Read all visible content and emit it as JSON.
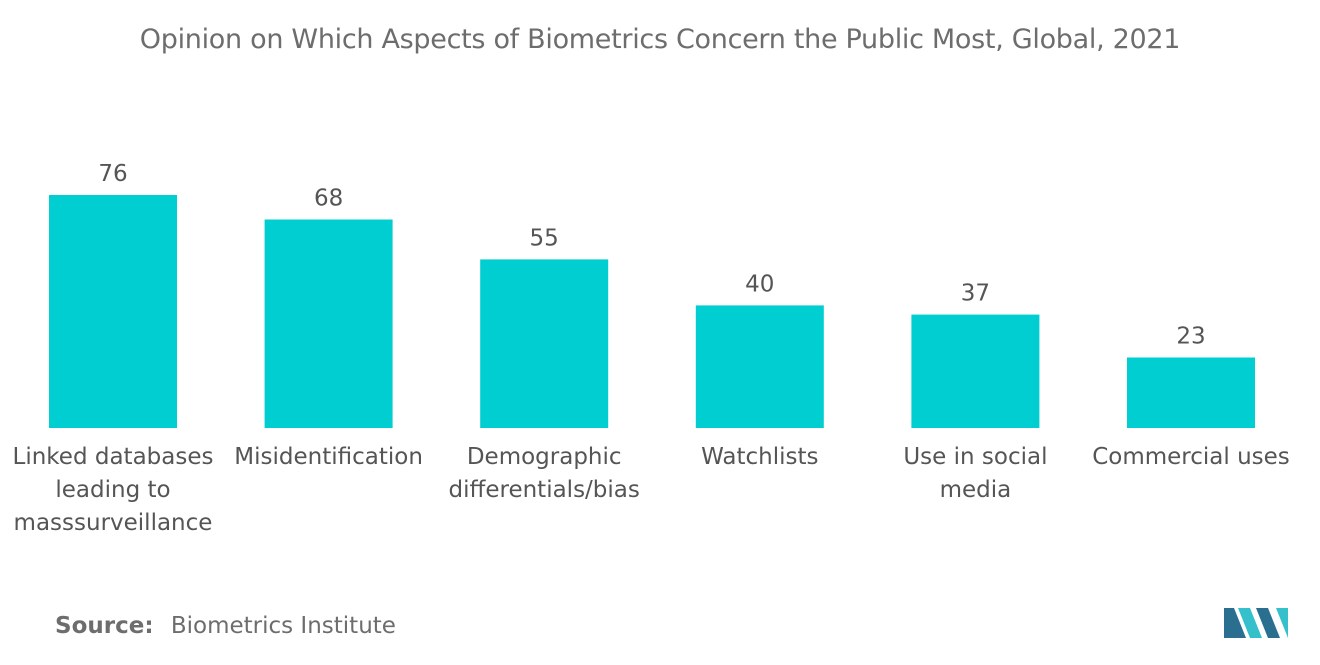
{
  "chart_data": {
    "type": "bar",
    "title": "Opinion on Which Aspects of Biometrics Concern the Public Most, Global, 2021",
    "categories": [
      [
        "Linked databases",
        "leading to",
        "masssurveillance"
      ],
      [
        "Misidentification"
      ],
      [
        "Demographic",
        "differentials/bias"
      ],
      [
        "Watchlists"
      ],
      [
        "Use in social",
        "media"
      ],
      [
        "Commercial uses"
      ]
    ],
    "values": [
      76,
      68,
      55,
      40,
      37,
      23
    ],
    "xlabel": "",
    "ylabel": "",
    "ylim": [
      0,
      76
    ],
    "grid": false,
    "legend": "none",
    "bar_color": "#00ced1",
    "label_color": "#555555"
  },
  "footer": {
    "source_label": "Source:",
    "source_value": "Biometrics Institute"
  },
  "colors": {
    "text": "#6d6d6d",
    "logo_dark": "#2a6f8f",
    "logo_light": "#35c0cc"
  },
  "icons": {
    "logo": "mordor-logo-icon"
  }
}
